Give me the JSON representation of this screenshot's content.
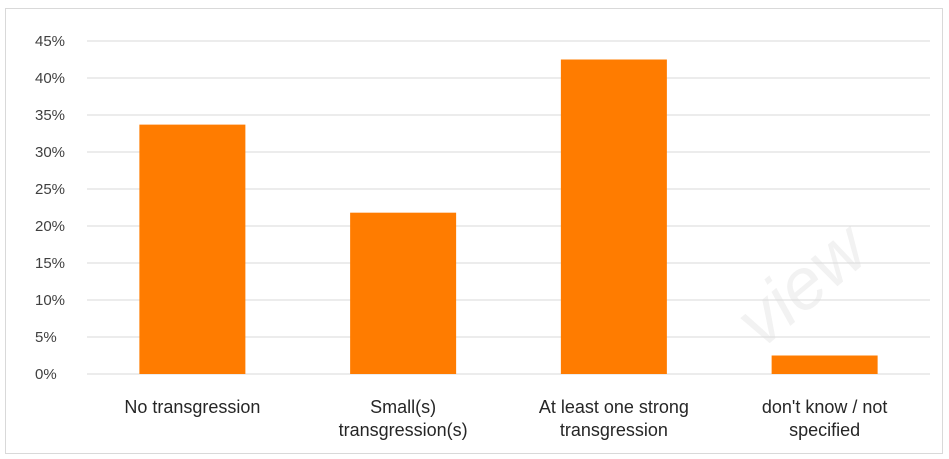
{
  "chart_data": {
    "type": "bar",
    "title": "",
    "xlabel": "",
    "ylabel": "",
    "categories": [
      [
        "No transgression"
      ],
      [
        "Small(s)",
        "transgression(s)"
      ],
      [
        "At least one strong",
        "transgression"
      ],
      [
        "don't know / not",
        "specified"
      ]
    ],
    "values": [
      33.7,
      21.8,
      42.5,
      2.5
    ],
    "y_ticks": [
      "0%",
      "5%",
      "10%",
      "15%",
      "20%",
      "25%",
      "30%",
      "35%",
      "40%",
      "45%"
    ],
    "ylim": [
      0,
      45
    ],
    "grid": true,
    "legend": "none",
    "bar_color": "#ff7c00",
    "grid_color": "#d9d9d9"
  },
  "watermark": "view"
}
